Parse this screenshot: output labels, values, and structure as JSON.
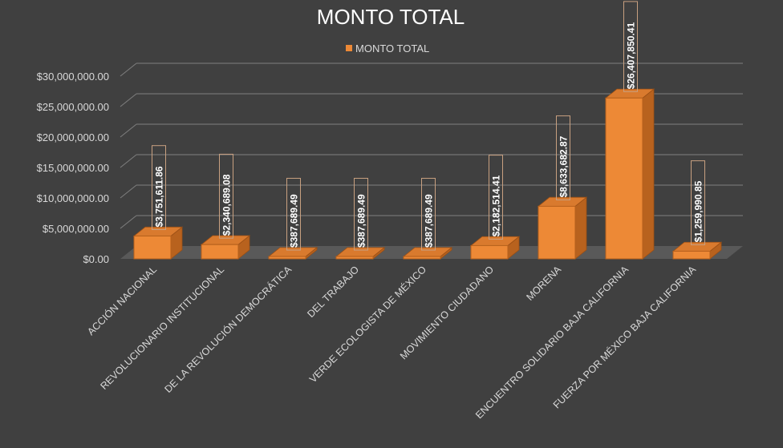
{
  "chart_data": {
    "type": "bar",
    "title": "MONTO TOTAL",
    "legend": {
      "position": "top",
      "entries": [
        "MONTO TOTAL"
      ]
    },
    "categories": [
      "ACCIÓN NACIONAL",
      "REVOLUCIONARIO INSTITUCIONAL",
      "DE LA REVOLUCIÓN DEMOCRÁTICA",
      "DEL TRABAJO",
      "VERDE ECOLOGISTA DE MÉXICO",
      "MOVIMIENTO CIUDADANO",
      "MORENA",
      "ENCUENTRO SOLIDARIO BAJA CALIFORNIA",
      "FUERZA POR MÉXICO BAJA CALIFORNIA"
    ],
    "series": [
      {
        "name": "MONTO TOTAL",
        "values": [
          3751611.86,
          2340689.08,
          387689.49,
          387689.49,
          387689.49,
          2182514.41,
          8633682.87,
          26407850.41,
          1259990.85
        ],
        "labels": [
          "$3,751,611.86",
          "$2,340,689.08",
          "$387,689.49",
          "$387,689.49",
          "$387,689.49",
          "$2,182,514.41",
          "$8,633,682.87",
          "$26,407,850.41",
          "$1,259,990.85"
        ]
      }
    ],
    "ylim": [
      0,
      30000000
    ],
    "yticks": [
      0,
      5000000,
      10000000,
      15000000,
      20000000,
      25000000,
      30000000
    ],
    "ytick_labels": [
      "$0.00",
      "$5,000,000.00",
      "$10,000,000.00",
      "$15,000,000.00",
      "$20,000,000.00",
      "$25,000,000.00",
      "$30,000,000.00"
    ],
    "grid": true,
    "style": "3d-column",
    "colors": {
      "bar": "#ED8936",
      "background": "#404040",
      "grid": "#7f7f7f",
      "floor": "#595959",
      "text": "#d9d9d9"
    }
  }
}
